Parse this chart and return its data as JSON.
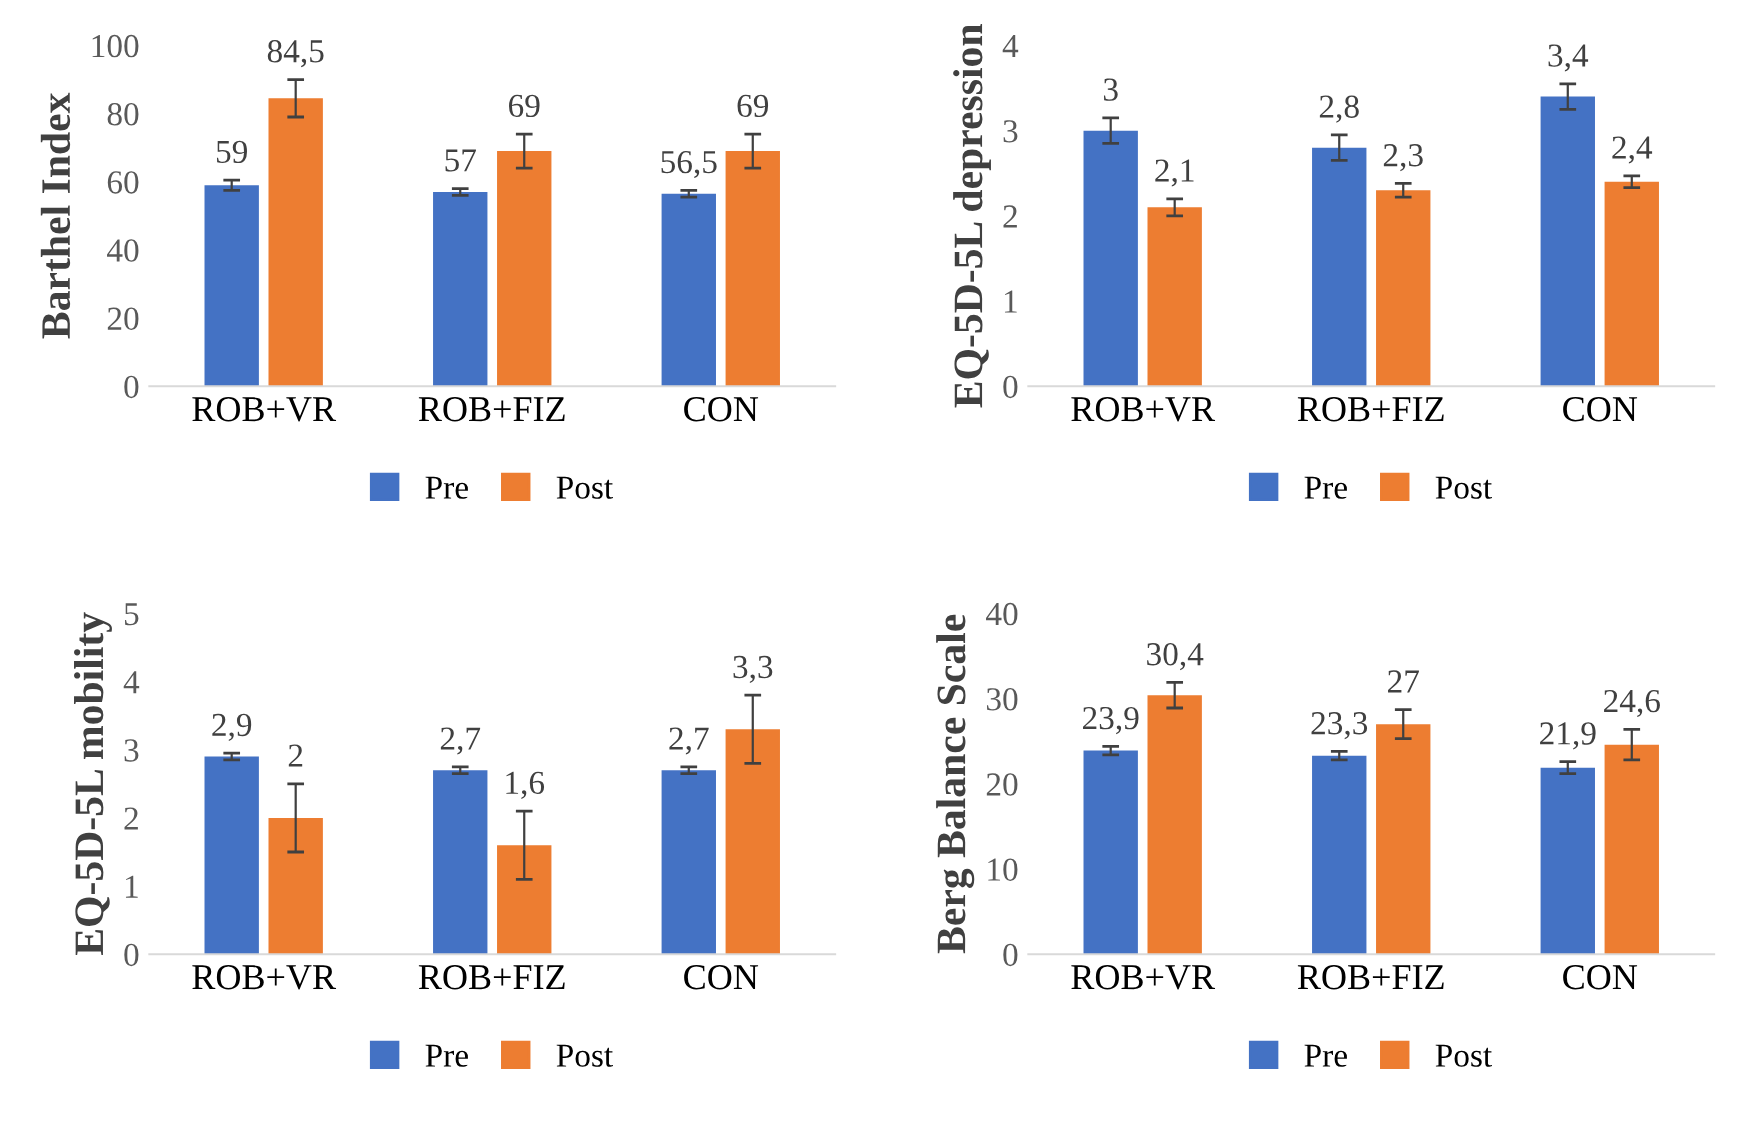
{
  "chart_data": [
    {
      "type": "bar",
      "ylabel": "Barthel Index",
      "categories": [
        "ROB+VR",
        "ROB+FIZ",
        "CON"
      ],
      "ylim": [
        0,
        100
      ],
      "yticks": [
        0,
        20,
        40,
        60,
        80,
        100
      ],
      "legend": "bottom",
      "series": [
        {
          "name": "Pre",
          "color": "#4472c4",
          "values": [
            59,
            57,
            56.5
          ],
          "errors": [
            1.5,
            1,
            1
          ],
          "value_labels": [
            "59",
            "57",
            "56,5"
          ]
        },
        {
          "name": "Post",
          "color": "#ed7d31",
          "values": [
            84.5,
            69,
            69
          ],
          "errors": [
            5.5,
            5,
            5
          ],
          "value_labels": [
            "84,5",
            "69",
            "69"
          ]
        }
      ]
    },
    {
      "type": "bar",
      "ylabel": "EQ-5D-5L depression",
      "categories": [
        "ROB+VR",
        "ROB+FIZ",
        "CON"
      ],
      "ylim": [
        0,
        4
      ],
      "yticks": [
        0,
        1,
        2,
        3,
        4
      ],
      "legend": "bottom",
      "series": [
        {
          "name": "Pre",
          "color": "#4472c4",
          "values": [
            3,
            2.8,
            3.4
          ],
          "errors": [
            0.15,
            0.15,
            0.15
          ],
          "value_labels": [
            "3",
            "2,8",
            "3,4"
          ]
        },
        {
          "name": "Post",
          "color": "#ed7d31",
          "values": [
            2.1,
            2.3,
            2.4
          ],
          "errors": [
            0.1,
            0.08,
            0.07
          ],
          "value_labels": [
            "2,1",
            "2,3",
            "2,4"
          ]
        }
      ]
    },
    {
      "type": "bar",
      "ylabel": "EQ-5D-5L mobility",
      "categories": [
        "ROB+VR",
        "ROB+FIZ",
        "CON"
      ],
      "ylim": [
        0,
        5
      ],
      "yticks": [
        0,
        1,
        2,
        3,
        4,
        5
      ],
      "legend": "bottom",
      "series": [
        {
          "name": "Pre",
          "color": "#4472c4",
          "values": [
            2.9,
            2.7,
            2.7
          ],
          "errors": [
            0.05,
            0.05,
            0.05
          ],
          "value_labels": [
            "2,9",
            "2,7",
            "2,7"
          ]
        },
        {
          "name": "Post",
          "color": "#ed7d31",
          "values": [
            2,
            1.6,
            3.3
          ],
          "errors": [
            0.5,
            0.5,
            0.5
          ],
          "value_labels": [
            "2",
            "1,6",
            "3,3"
          ]
        }
      ]
    },
    {
      "type": "bar",
      "ylabel": "Berg Balance Scale",
      "categories": [
        "ROB+VR",
        "ROB+FIZ",
        "CON"
      ],
      "ylim": [
        0,
        40
      ],
      "yticks": [
        0,
        10,
        20,
        30,
        40
      ],
      "legend": "bottom",
      "series": [
        {
          "name": "Pre",
          "color": "#4472c4",
          "values": [
            23.9,
            23.3,
            21.9
          ],
          "errors": [
            0.5,
            0.5,
            0.7
          ],
          "value_labels": [
            "23,9",
            "23,3",
            "21,9"
          ]
        },
        {
          "name": "Post",
          "color": "#ed7d31",
          "values": [
            30.4,
            27,
            24.6
          ],
          "errors": [
            1.5,
            1.7,
            1.8
          ],
          "value_labels": [
            "30,4",
            "27",
            "24,6"
          ]
        }
      ]
    }
  ]
}
